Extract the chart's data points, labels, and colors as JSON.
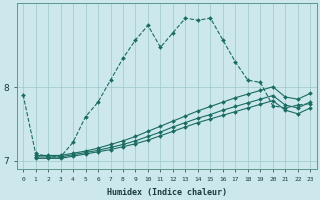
{
  "xlabel": "Humidex (Indice chaleur)",
  "bg_color": "#cce8ec",
  "grid_color": "#9fc8cc",
  "line_color": "#1a6b60",
  "xlim": [
    -0.5,
    23.5
  ],
  "ylim": [
    6.88,
    9.15
  ],
  "xticks": [
    0,
    1,
    2,
    3,
    4,
    5,
    6,
    7,
    8,
    9,
    10,
    11,
    12,
    13,
    14,
    15,
    16,
    17,
    18,
    19,
    20,
    21,
    22,
    23
  ],
  "yticks": [
    7,
    8
  ],
  "line1_x": [
    0,
    1,
    2,
    3,
    4,
    5,
    6,
    7,
    8,
    9,
    10,
    11,
    12,
    13,
    14,
    15,
    16,
    17,
    18,
    19,
    20,
    21,
    22,
    23
  ],
  "line1_y": [
    7.9,
    7.1,
    7.05,
    7.05,
    7.25,
    7.6,
    7.8,
    8.1,
    8.4,
    8.65,
    8.85,
    8.55,
    8.75,
    8.95,
    8.92,
    8.95,
    8.65,
    8.35,
    8.1,
    8.07,
    7.75,
    7.72,
    7.76,
    7.78
  ],
  "line2_x": [
    1,
    2,
    3,
    4,
    5,
    6,
    7,
    8,
    9,
    10,
    11,
    12,
    13,
    14,
    15,
    16,
    17,
    18,
    19,
    20,
    21,
    22,
    23
  ],
  "line2_y": [
    7.07,
    7.07,
    7.07,
    7.1,
    7.13,
    7.17,
    7.22,
    7.27,
    7.33,
    7.4,
    7.47,
    7.54,
    7.61,
    7.68,
    7.74,
    7.8,
    7.86,
    7.91,
    7.96,
    8.01,
    7.87,
    7.84,
    7.92
  ],
  "line3_x": [
    1,
    2,
    3,
    4,
    5,
    6,
    7,
    8,
    9,
    10,
    11,
    12,
    13,
    14,
    15,
    16,
    17,
    18,
    19,
    20,
    21,
    22,
    23
  ],
  "line3_y": [
    7.05,
    7.05,
    7.05,
    7.08,
    7.11,
    7.14,
    7.18,
    7.22,
    7.27,
    7.33,
    7.39,
    7.46,
    7.52,
    7.58,
    7.63,
    7.69,
    7.74,
    7.79,
    7.84,
    7.89,
    7.76,
    7.72,
    7.8
  ],
  "line4_x": [
    1,
    2,
    3,
    4,
    5,
    6,
    7,
    8,
    9,
    10,
    11,
    12,
    13,
    14,
    15,
    16,
    17,
    18,
    19,
    20,
    21,
    22,
    23
  ],
  "line4_y": [
    7.03,
    7.03,
    7.03,
    7.06,
    7.09,
    7.12,
    7.15,
    7.19,
    7.23,
    7.28,
    7.34,
    7.4,
    7.46,
    7.52,
    7.57,
    7.62,
    7.67,
    7.72,
    7.77,
    7.82,
    7.69,
    7.64,
    7.72
  ]
}
